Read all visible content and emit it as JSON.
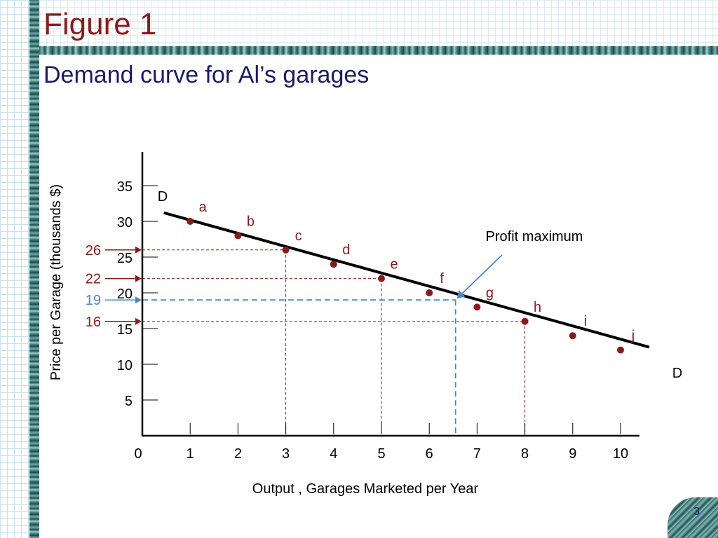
{
  "slide": {
    "title": "Figure 1",
    "subtitle": "Demand curve for Al’s garages",
    "page_number": "3"
  },
  "chart_data": {
    "type": "line",
    "title": "",
    "xlabel": "Output , Garages Marketed per Year",
    "ylabel": "Price per Garage (thousands $)",
    "xlim": [
      0,
      10.5
    ],
    "ylim": [
      0,
      38
    ],
    "x_ticks": [
      1,
      2,
      3,
      4,
      5,
      6,
      7,
      8,
      9,
      10
    ],
    "y_ticks": [
      5,
      10,
      15,
      20,
      25,
      30,
      35
    ],
    "origin_label": "0",
    "demand_line": {
      "label": "D",
      "x": [
        0.45,
        10.6
      ],
      "y": [
        31.2,
        12.4
      ]
    },
    "points": [
      {
        "label": "a",
        "x": 1,
        "y": 30
      },
      {
        "label": "b",
        "x": 2,
        "y": 28
      },
      {
        "label": "c",
        "x": 3,
        "y": 26
      },
      {
        "label": "d",
        "x": 4,
        "y": 24
      },
      {
        "label": "e",
        "x": 5,
        "y": 22
      },
      {
        "label": "f",
        "x": 6,
        "y": 20
      },
      {
        "label": "g",
        "x": 7,
        "y": 18
      },
      {
        "label": "h",
        "x": 8,
        "y": 16
      },
      {
        "label": "i",
        "x": 9,
        "y": 14
      },
      {
        "label": "j",
        "x": 10,
        "y": 12
      }
    ],
    "price_markers": [
      {
        "label": "26",
        "y": 26,
        "x": 3,
        "color": "#8b1a1a"
      },
      {
        "label": "22",
        "y": 22,
        "x": 5,
        "color": "#8b1a1a"
      },
      {
        "label": "19",
        "y": 19,
        "x": 6.55,
        "color": "#4a86c5"
      },
      {
        "label": "16",
        "y": 16,
        "x": 8,
        "color": "#8b1a1a"
      }
    ],
    "annotation": {
      "text": "Profit maximum",
      "x": 6.55,
      "y": 19
    },
    "colors": {
      "line": "#000000",
      "point": "#8b1a1a",
      "label": "#8b1a1a",
      "profit": "#4a86c5",
      "axis": "#000000"
    }
  }
}
